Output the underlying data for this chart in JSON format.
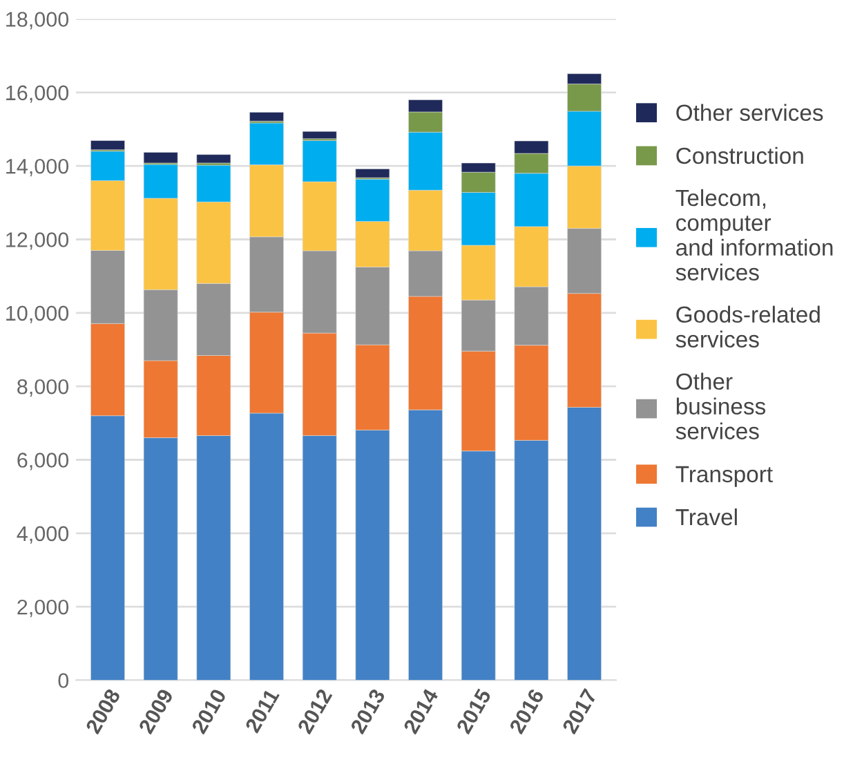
{
  "chart_data": {
    "type": "bar",
    "stacked": true,
    "categories": [
      "2008",
      "2009",
      "2010",
      "2011",
      "2012",
      "2013",
      "2014",
      "2015",
      "2016",
      "2017"
    ],
    "series": [
      {
        "name": "Travel",
        "color": "#4281c5",
        "values": [
          7200,
          6600,
          6660,
          7270,
          6660,
          6810,
          7360,
          6240,
          6530,
          7430
        ]
      },
      {
        "name": "Transport",
        "color": "#ee7733",
        "values": [
          2510,
          2100,
          2180,
          2750,
          2790,
          2320,
          3090,
          2720,
          2590,
          3100
        ]
      },
      {
        "name": "Other\nbusiness\nservices",
        "color": "#939393",
        "values": [
          1990,
          1930,
          1960,
          2050,
          2240,
          2120,
          1240,
          1390,
          1590,
          1770
        ]
      },
      {
        "name": "Goods-related\nservices",
        "color": "#fbc343",
        "values": [
          1900,
          2490,
          2220,
          1960,
          1880,
          1240,
          1650,
          1490,
          1640,
          1700
        ]
      },
      {
        "name": "Telecom,\ncomputer\nand information\nservices",
        "color": "#00adee",
        "values": [
          800,
          920,
          1000,
          1140,
          1120,
          1150,
          1580,
          1440,
          1450,
          1490
        ]
      },
      {
        "name": "Construction",
        "color": "#78994a",
        "values": [
          40,
          40,
          60,
          50,
          50,
          40,
          550,
          550,
          540,
          740
        ]
      },
      {
        "name": "Other services",
        "color": "#1f2a5a",
        "values": [
          250,
          290,
          230,
          240,
          200,
          240,
          330,
          250,
          340,
          280
        ]
      }
    ],
    "ylim": [
      0,
      18000
    ],
    "yticks": [
      {
        "value": 0,
        "label": "0"
      },
      {
        "value": 2000,
        "label": "2,000"
      },
      {
        "value": 4000,
        "label": "4,000"
      },
      {
        "value": 6000,
        "label": "6,000"
      },
      {
        "value": 8000,
        "label": "8,000"
      },
      {
        "value": 10000,
        "label": "10,000"
      },
      {
        "value": 12000,
        "label": "12,000"
      },
      {
        "value": 14000,
        "label": "14,000"
      },
      {
        "value": 16000,
        "label": "16,000"
      },
      {
        "value": 18000,
        "label": "18,000"
      }
    ],
    "grid": "y",
    "legend": "right"
  }
}
